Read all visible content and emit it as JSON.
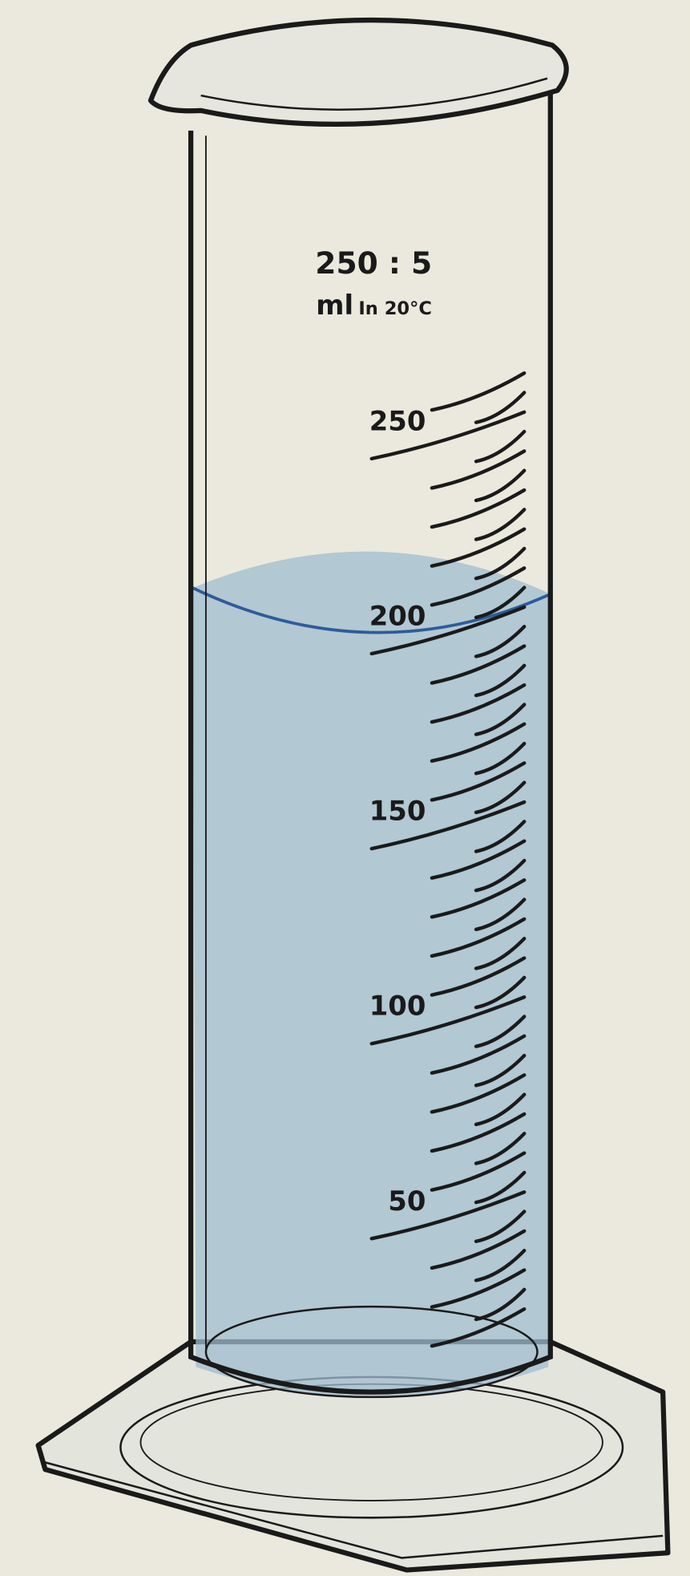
{
  "label": {
    "capacity": "250 : 5",
    "unit": "ml",
    "calibration": "In 20°C"
  },
  "scale": {
    "labels": [
      "250",
      "200",
      "150",
      "100",
      "50"
    ]
  }
}
